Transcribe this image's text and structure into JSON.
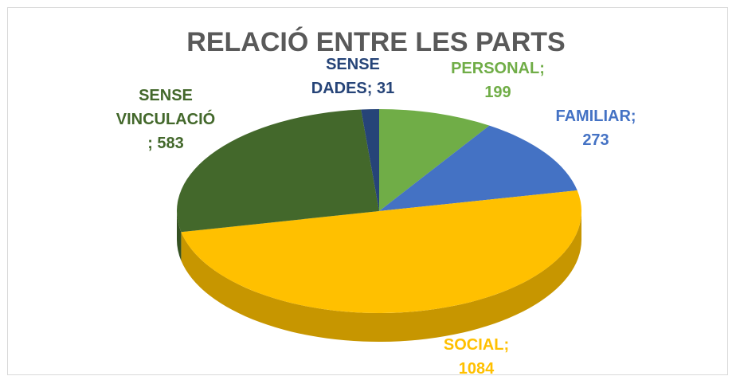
{
  "chart_data": {
    "type": "pie",
    "title": "RELACIÓ ENTRE LES PARTS",
    "categories": [
      "PERSONAL",
      "FAMILIAR",
      "SOCIAL",
      "SENSE VINCULACIÓ",
      "SENSE DADES"
    ],
    "values": [
      199,
      273,
      1084,
      583,
      31
    ],
    "value_labels": [
      "PERSONAL;\n199",
      "FAMILIAR;\n273",
      "SOCIAL;\n1084",
      "SENSE\nVINCULACIÓ\n; 583",
      "SENSE\nDADES; 31"
    ],
    "colors": [
      "#70ad47",
      "#4472c4",
      "#ffc000",
      "#43682b",
      "#264478"
    ]
  }
}
